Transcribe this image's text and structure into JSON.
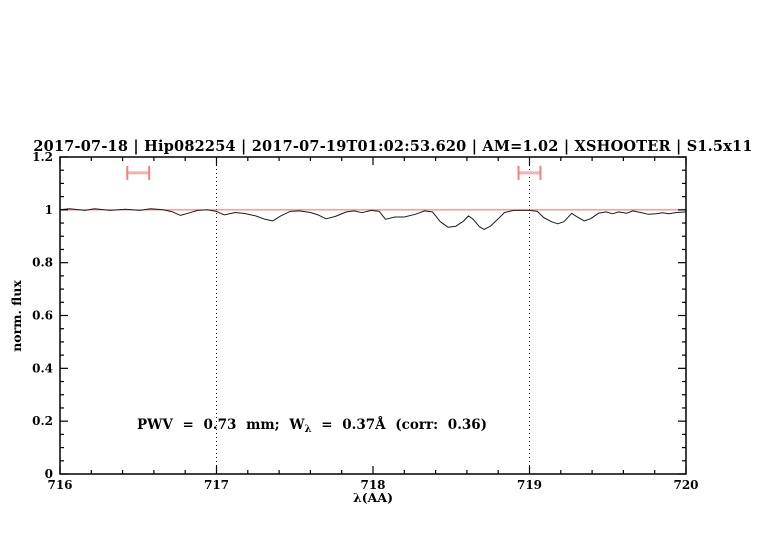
{
  "title": "2017-07-18 | Hip082254 | 2017-07-19T01:02:53.620 | AM=1.02 | XSHOOTER | S1.5x11",
  "annotation": {
    "prefix": "PWV = 0.73 mm; W",
    "subscript": "λ",
    "suffix": " = 0.37Å (corr: 0.36)",
    "full": "PWV = 0.73 mm; W_λ = 0.37Å (corr: 0.36)"
  },
  "colors": {
    "blue": "#1414cc",
    "continuum_red": "#f06a6a",
    "marker_cap_red": "#ee8181",
    "marker_bar_red": "#f6b0b0",
    "spectrum_black": "#1c1c1c",
    "frame_black": "#000000"
  },
  "chart_data": {
    "type": "line",
    "title": "2017-07-18 | Hip082254 | 2017-07-19T01:02:53.620 | AM=1.02 | XSHOOTER | S1.5x11",
    "xlabel": "λ(AA)",
    "ylabel": "norm. flux",
    "xlim": [
      716,
      720
    ],
    "ylim": [
      0,
      1.2
    ],
    "grid": "off",
    "legend": "none",
    "x_major_ticks": [
      716,
      717,
      718,
      719,
      720
    ],
    "x_tick_labels": [
      "716",
      "717",
      "718",
      "719",
      "720"
    ],
    "x_minor_step": 0.2,
    "y_major_ticks": [
      0,
      0.2,
      0.4,
      0.6,
      0.8,
      1,
      1.2
    ],
    "y_tick_labels": [
      "0",
      "0.2",
      "0.4",
      "0.6",
      "0.8",
      "1",
      "1.2"
    ],
    "y_minor_step": 0.05,
    "dotted_vlines": [
      717,
      719
    ],
    "continuum_level": 1.0,
    "telluric_markers": [
      {
        "x_min": 716.43,
        "x_max": 716.57,
        "y": 1.14
      },
      {
        "x_min": 718.93,
        "x_max": 719.07,
        "y": 1.14
      }
    ],
    "series": [
      {
        "name": "observed-spectrum",
        "points": [
          [
            716.0,
            1.0
          ],
          [
            716.06,
            1.004
          ],
          [
            716.16,
            0.998
          ],
          [
            716.22,
            1.004
          ],
          [
            716.32,
            0.998
          ],
          [
            716.42,
            1.002
          ],
          [
            716.51,
            0.998
          ],
          [
            716.58,
            1.004
          ],
          [
            716.66,
            1.0
          ],
          [
            716.72,
            0.992
          ],
          [
            716.77,
            0.979
          ],
          [
            716.83,
            0.989
          ],
          [
            716.88,
            0.998
          ],
          [
            716.94,
            1.0
          ],
          [
            717.0,
            0.994
          ],
          [
            717.05,
            0.981
          ],
          [
            717.12,
            0.99
          ],
          [
            717.18,
            0.986
          ],
          [
            717.25,
            0.977
          ],
          [
            717.31,
            0.964
          ],
          [
            717.36,
            0.958
          ],
          [
            717.41,
            0.977
          ],
          [
            717.47,
            0.994
          ],
          [
            717.53,
            0.996
          ],
          [
            717.6,
            0.99
          ],
          [
            717.65,
            0.981
          ],
          [
            717.7,
            0.966
          ],
          [
            717.76,
            0.975
          ],
          [
            717.83,
            0.992
          ],
          [
            717.88,
            0.996
          ],
          [
            717.93,
            0.989
          ],
          [
            717.99,
            0.998
          ],
          [
            718.04,
            0.994
          ],
          [
            718.08,
            0.964
          ],
          [
            718.14,
            0.973
          ],
          [
            718.2,
            0.973
          ],
          [
            718.27,
            0.983
          ],
          [
            718.33,
            0.996
          ],
          [
            718.38,
            0.992
          ],
          [
            718.43,
            0.955
          ],
          [
            718.48,
            0.934
          ],
          [
            718.53,
            0.938
          ],
          [
            718.58,
            0.958
          ],
          [
            718.61,
            0.977
          ],
          [
            718.64,
            0.964
          ],
          [
            718.68,
            0.936
          ],
          [
            718.71,
            0.926
          ],
          [
            718.75,
            0.938
          ],
          [
            718.8,
            0.966
          ],
          [
            718.84,
            0.99
          ],
          [
            718.9,
            0.998
          ],
          [
            718.95,
            0.998
          ],
          [
            719.0,
            0.998
          ],
          [
            719.05,
            0.994
          ],
          [
            719.09,
            0.971
          ],
          [
            719.14,
            0.955
          ],
          [
            719.18,
            0.947
          ],
          [
            719.22,
            0.955
          ],
          [
            719.27,
            0.987
          ],
          [
            719.3,
            0.975
          ],
          [
            719.35,
            0.958
          ],
          [
            719.39,
            0.966
          ],
          [
            719.44,
            0.987
          ],
          [
            719.49,
            0.992
          ],
          [
            719.53,
            0.985
          ],
          [
            719.57,
            0.992
          ],
          [
            719.62,
            0.987
          ],
          [
            719.66,
            0.996
          ],
          [
            719.71,
            0.99
          ],
          [
            719.76,
            0.983
          ],
          [
            719.81,
            0.985
          ],
          [
            719.85,
            0.989
          ],
          [
            719.89,
            0.985
          ],
          [
            719.94,
            0.99
          ],
          [
            720.0,
            0.992
          ]
        ]
      },
      {
        "name": "continuum-fit",
        "constant_y": 1.0
      }
    ]
  }
}
